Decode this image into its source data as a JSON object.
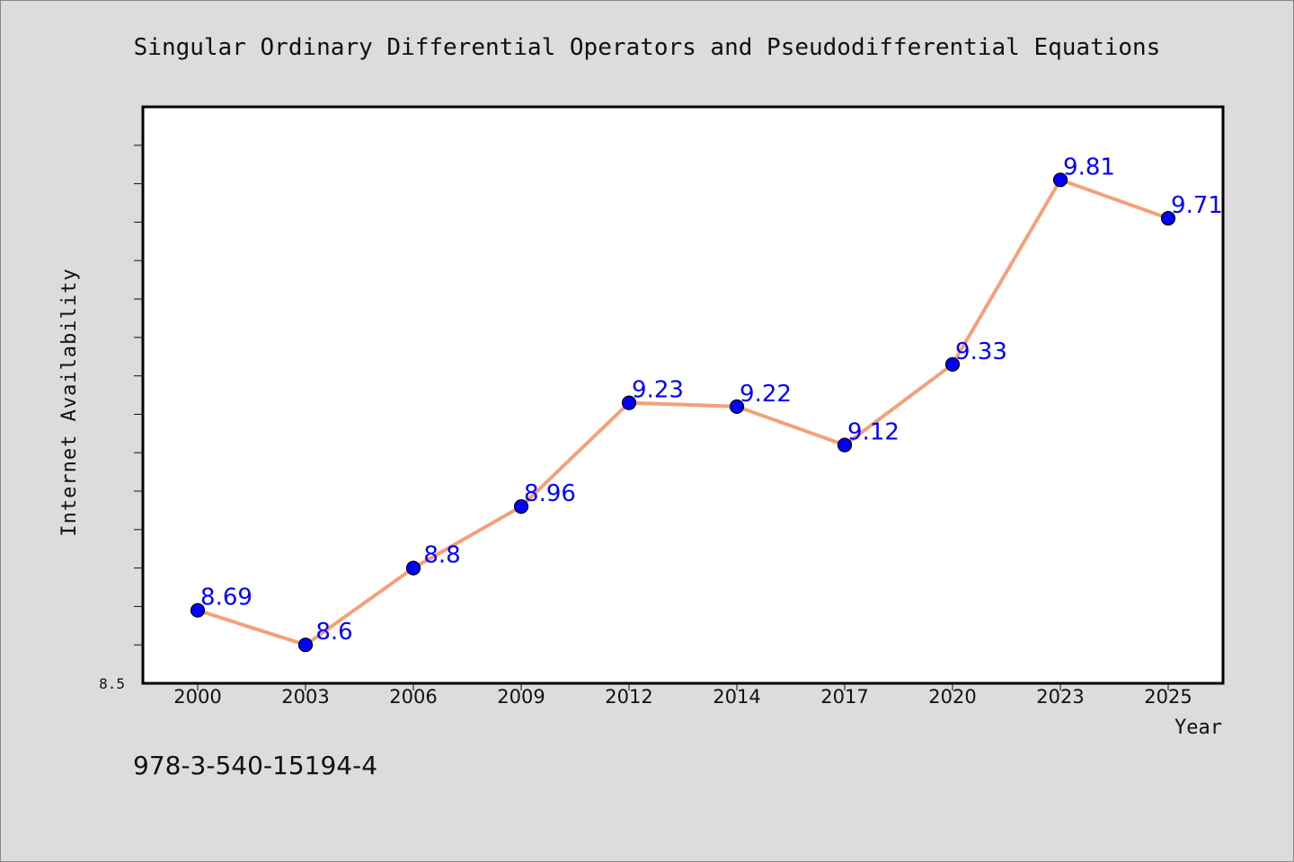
{
  "chart_data": {
    "type": "line",
    "title": "Singular Ordinary Differential Operators and Pseudodifferential Equations",
    "xlabel": "Year",
    "ylabel": "Internet Availability",
    "categories": [
      "2000",
      "2003",
      "2006",
      "2009",
      "2012",
      "2014",
      "2017",
      "2020",
      "2023",
      "2025"
    ],
    "series": [
      {
        "values": [
          8.69,
          8.6,
          8.8,
          8.96,
          9.23,
          9.22,
          9.12,
          9.33,
          9.81,
          9.71
        ]
      }
    ],
    "data_labels": [
      "8.69",
      "8.6",
      "8.8",
      "8.96",
      "9.23",
      "9.22",
      "9.12",
      "9.33",
      "9.81",
      "9.71"
    ],
    "ylim": [
      8.5,
      10.0
    ],
    "ytick_label": "8.5",
    "grid": false,
    "legend": "none",
    "colors": {
      "line": "#f4a07a",
      "marker": "#0000ff",
      "data_label": "#0000ff",
      "plot_background": "#ffffff",
      "page_background": "#dcdcdc"
    }
  },
  "footer": {
    "isbn": "978-3-540-15194-4"
  }
}
